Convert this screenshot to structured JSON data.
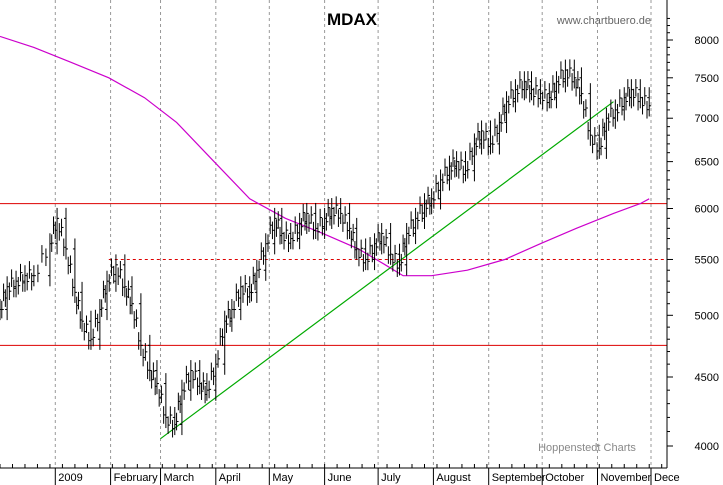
{
  "chart_data": {
    "type": "line",
    "title": "MDAX",
    "watermark": "www.chartbuero.de",
    "footer": "Hoppenstedt Charts",
    "ylim": [
      3900,
      8300
    ],
    "y_scale": "log",
    "y_ticks": [
      4000,
      4500,
      5000,
      5500,
      6000,
      6500,
      7000,
      7500,
      8000
    ],
    "x_ticks": [
      "2009",
      "February",
      "March",
      "April",
      "May",
      "June",
      "July",
      "August",
      "September",
      "October",
      "November",
      "Dece"
    ],
    "grid": true,
    "series": [
      {
        "type": "ohlc",
        "color": "#000000",
        "dates": [
          "2008-12-01",
          "2008-12-05",
          "2008-12-10",
          "2008-12-15",
          "2008-12-20",
          "2008-12-29",
          "2009-01-02",
          "2009-01-07",
          "2009-01-12",
          "2009-01-16",
          "2009-01-21",
          "2009-01-26",
          "2009-01-30",
          "2009-02-04",
          "2009-02-09",
          "2009-02-13",
          "2009-02-18",
          "2009-02-23",
          "2009-02-27",
          "2009-03-04",
          "2009-03-09",
          "2009-03-13",
          "2009-03-18",
          "2009-03-23",
          "2009-03-27",
          "2009-04-01",
          "2009-04-06",
          "2009-04-10",
          "2009-04-15",
          "2009-04-20",
          "2009-04-24",
          "2009-04-29",
          "2009-05-04",
          "2009-05-08",
          "2009-05-13",
          "2009-05-18",
          "2009-05-22",
          "2009-05-27",
          "2009-06-01",
          "2009-06-05",
          "2009-06-10",
          "2009-06-15",
          "2009-06-19",
          "2009-06-24",
          "2009-06-29",
          "2009-07-03",
          "2009-07-08",
          "2009-07-13",
          "2009-07-17",
          "2009-07-22",
          "2009-07-27",
          "2009-07-31",
          "2009-08-05",
          "2009-08-10",
          "2009-08-14",
          "2009-08-19",
          "2009-08-24",
          "2009-08-28",
          "2009-09-02",
          "2009-09-07",
          "2009-09-11",
          "2009-09-16",
          "2009-09-21",
          "2009-09-25",
          "2009-09-30",
          "2009-10-05",
          "2009-10-09",
          "2009-10-14",
          "2009-10-19",
          "2009-10-23",
          "2009-10-28",
          "2009-11-02",
          "2009-11-06",
          "2009-11-11",
          "2009-11-16",
          "2009-11-20",
          "2009-11-25",
          "2009-11-30"
        ],
        "values": [
          5050,
          5250,
          5300,
          5350,
          5350,
          5650,
          5900,
          5600,
          5200,
          4950,
          4800,
          5050,
          5300,
          5450,
          5250,
          5100,
          4750,
          4550,
          4450,
          4200,
          4150,
          4400,
          4550,
          4450,
          4400,
          4600,
          4950,
          5050,
          5250,
          5200,
          5400,
          5650,
          5900,
          5750,
          5700,
          5850,
          5950,
          5800,
          5900,
          6000,
          5950,
          5800,
          5600,
          5500,
          5650,
          5750,
          5550,
          5450,
          5750,
          5900,
          6050,
          6100,
          6300,
          6450,
          6500,
          6400,
          6700,
          6850,
          6700,
          6950,
          7200,
          7350,
          7450,
          7350,
          7300,
          7250,
          7450,
          7600,
          7500,
          7300,
          6800,
          6650,
          7000,
          7100,
          7250,
          7350,
          7250,
          7150
        ]
      },
      {
        "name": "",
        "type": "line",
        "color": "#cc00cc",
        "dates": [
          "2008-12-01",
          "2008-12-20",
          "2009-01-10",
          "2009-01-31",
          "2009-02-20",
          "2009-03-10",
          "2009-03-31",
          "2009-04-20",
          "2009-05-10",
          "2009-05-31",
          "2009-06-20",
          "2009-07-05",
          "2009-07-15",
          "2009-07-31",
          "2009-08-20",
          "2009-09-10",
          "2009-09-30",
          "2009-10-20",
          "2009-11-10",
          "2009-11-25",
          "2009-11-30"
        ],
        "values": [
          8050,
          7900,
          7700,
          7500,
          7250,
          6950,
          6500,
          6100,
          5900,
          5750,
          5600,
          5450,
          5350,
          5350,
          5400,
          5500,
          5650,
          5800,
          5950,
          6050,
          6100
        ]
      },
      {
        "name": "",
        "type": "line",
        "color": "#00aa00",
        "dates": [
          "2009-03-01",
          "2009-11-10"
        ],
        "values": [
          4050,
          7200
        ]
      }
    ],
    "horizontal_lines": [
      {
        "value": 6050,
        "color": "#dd0000",
        "style": "solid",
        "from_date": "2008-12-01"
      },
      {
        "value": 5500,
        "color": "#dd0000",
        "style": "dashed",
        "from_date": "2009-01-31"
      },
      {
        "value": 4750,
        "color": "#dd0000",
        "style": "solid",
        "from_date": "2008-12-01"
      }
    ]
  }
}
